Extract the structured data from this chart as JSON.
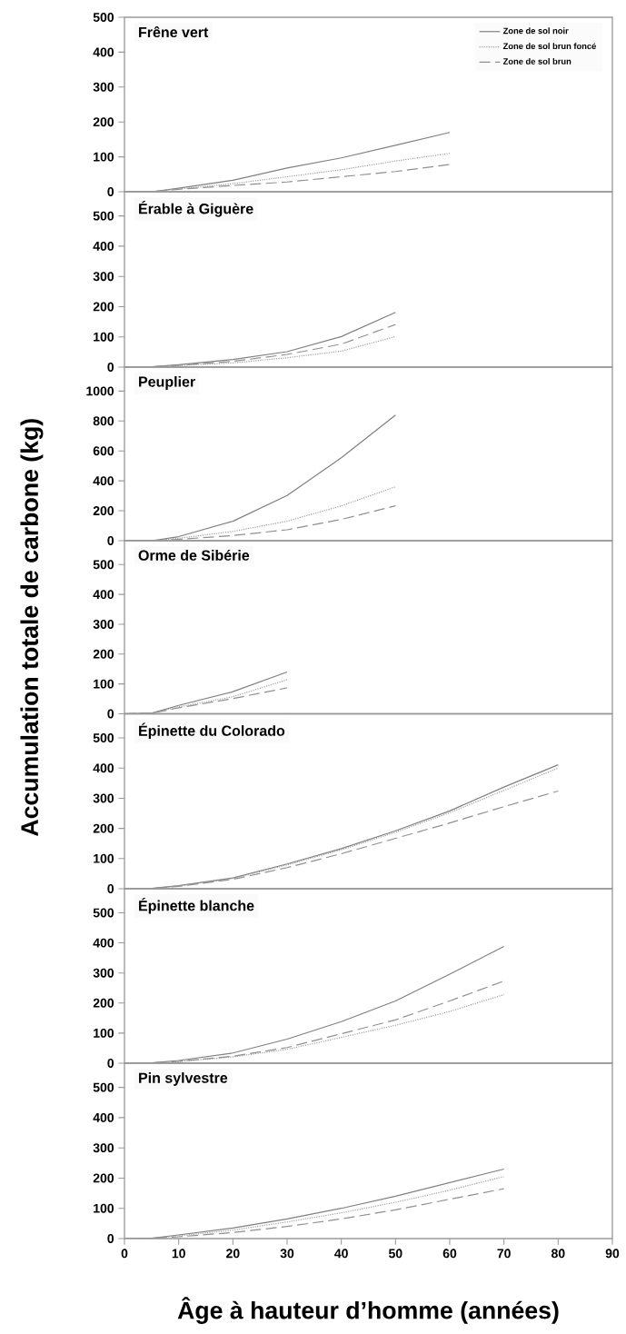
{
  "chart_data": [
    {
      "type": "line",
      "title": "Frêne vert",
      "xlim": [
        0,
        90
      ],
      "ylim": [
        0,
        500
      ],
      "yticks": [
        0,
        100,
        200,
        300,
        400,
        500
      ],
      "tick_labels": "y",
      "legend": "top right",
      "x": [
        0,
        5,
        10,
        20,
        30,
        40,
        50,
        60
      ],
      "series": [
        {
          "name": "Zone de sol noir",
          "color": "#808080",
          "line_style": "solid",
          "values": [
            0,
            0,
            10,
            33,
            68,
            97,
            133,
            170
          ]
        },
        {
          "name": "Zone de sol brun foncé",
          "color": "#a0a0a0",
          "line_style": "dotted",
          "values": [
            0,
            0,
            8,
            23,
            43,
            63,
            88,
            110
          ]
        },
        {
          "name": "Zone de sol brun",
          "color": "#909090",
          "line_style": "dashed",
          "values": [
            0,
            0,
            7,
            18,
            28,
            43,
            58,
            78
          ]
        }
      ]
    },
    {
      "type": "line",
      "title": "Érable à Giguère",
      "xlim": [
        0,
        90
      ],
      "ylim": [
        0,
        580
      ],
      "yticks": [
        0,
        100,
        200,
        300,
        400,
        500
      ],
      "tick_labels": "y",
      "x": [
        0,
        5,
        10,
        20,
        30,
        40,
        50
      ],
      "series": [
        {
          "color": "#808080",
          "line_style": "solid",
          "values": [
            0,
            1,
            8,
            25,
            51,
            101,
            181
          ]
        },
        {
          "color": "#a0a0a0",
          "line_style": "dotted",
          "values": [
            0,
            1,
            5,
            14,
            31,
            53,
            101
          ]
        },
        {
          "color": "#909090",
          "line_style": "dashed",
          "values": [
            0,
            1,
            6,
            19,
            42,
            76,
            141
          ]
        }
      ]
    },
    {
      "type": "line",
      "title": "Peuplier",
      "xlim": [
        0,
        90
      ],
      "ylim": [
        0,
        1160
      ],
      "yticks": [
        0,
        200,
        400,
        600,
        800,
        1000
      ],
      "tick_labels": "y",
      "x": [
        0,
        5,
        10,
        20,
        30,
        40,
        50
      ],
      "series": [
        {
          "color": "#808080",
          "line_style": "solid",
          "values": [
            0,
            0,
            27,
            130,
            302,
            554,
            840
          ]
        },
        {
          "color": "#a0a0a0",
          "line_style": "dotted",
          "values": [
            0,
            0,
            16,
            62,
            130,
            233,
            360
          ]
        },
        {
          "color": "#909090",
          "line_style": "dashed",
          "values": [
            0,
            0,
            9,
            34,
            73,
            142,
            233
          ]
        }
      ]
    },
    {
      "type": "line",
      "title": "Orme de Sibérie",
      "ylabel": "Accumulation totale de carbone (kg)",
      "xlim": [
        0,
        90
      ],
      "ylim": [
        0,
        580
      ],
      "yticks": [
        0,
        100,
        200,
        300,
        400,
        500
      ],
      "tick_labels": "y",
      "x": [
        0,
        5,
        10,
        20,
        30
      ],
      "series": [
        {
          "color": "#808080",
          "line_style": "solid",
          "values": [
            0,
            2,
            28,
            74,
            140
          ]
        },
        {
          "color": "#a0a0a0",
          "line_style": "dotted",
          "values": [
            0,
            2,
            23,
            57,
            114
          ]
        },
        {
          "color": "#909090",
          "line_style": "dashed",
          "values": [
            0,
            2,
            20,
            51,
            87
          ]
        }
      ]
    },
    {
      "type": "line",
      "title": "Épinette du Colorado",
      "xlim": [
        0,
        90
      ],
      "ylim": [
        0,
        580
      ],
      "yticks": [
        0,
        100,
        200,
        300,
        400,
        500
      ],
      "tick_labels": "y",
      "x": [
        0,
        5,
        10,
        20,
        30,
        40,
        50,
        60,
        70,
        80
      ],
      "series": [
        {
          "color": "#808080",
          "line_style": "solid",
          "values": [
            0,
            1,
            10,
            36,
            82,
            133,
            192,
            258,
            337,
            411
          ]
        },
        {
          "color": "#a0a0a0",
          "line_style": "dotted",
          "values": [
            0,
            1,
            9,
            34,
            79,
            129,
            187,
            252,
            326,
            400
          ]
        },
        {
          "color": "#909090",
          "line_style": "dashed",
          "values": [
            0,
            1,
            8,
            31,
            70,
            116,
            167,
            218,
            272,
            324
          ]
        }
      ]
    },
    {
      "type": "line",
      "title": "Épinette blanche",
      "xlim": [
        0,
        90
      ],
      "ylim": [
        0,
        580
      ],
      "yticks": [
        0,
        100,
        200,
        300,
        400,
        500
      ],
      "tick_labels": "y",
      "x": [
        0,
        5,
        10,
        20,
        30,
        40,
        50,
        60,
        70
      ],
      "series": [
        {
          "color": "#808080",
          "line_style": "solid",
          "values": [
            0,
            1,
            9,
            34,
            80,
            138,
            207,
            296,
            388
          ]
        },
        {
          "color": "#a0a0a0",
          "line_style": "dotted",
          "values": [
            0,
            1,
            5,
            21,
            46,
            86,
            126,
            172,
            228
          ]
        },
        {
          "color": "#909090",
          "line_style": "dashed",
          "values": [
            0,
            1,
            6,
            23,
            52,
            98,
            144,
            207,
            273
          ]
        }
      ]
    },
    {
      "type": "line",
      "title": "Pin sylvestre",
      "xlabel": "Âge à hauteur d’homme (années)",
      "xlim": [
        0,
        90
      ],
      "xticks": [
        0,
        10,
        20,
        30,
        40,
        50,
        60,
        70,
        80,
        90
      ],
      "ylim": [
        0,
        580
      ],
      "yticks": [
        0,
        100,
        200,
        300,
        400,
        500
      ],
      "x": [
        0,
        5,
        10,
        20,
        30,
        40,
        50,
        60,
        70
      ],
      "series": [
        {
          "color": "#808080",
          "line_style": "solid",
          "values": [
            0,
            1,
            12,
            35,
            65,
            100,
            140,
            185,
            230
          ]
        },
        {
          "color": "#a0a0a0",
          "line_style": "dotted",
          "values": [
            0,
            1,
            9,
            28,
            55,
            85,
            120,
            160,
            205
          ]
        },
        {
          "color": "#909090",
          "line_style": "dashed",
          "values": [
            0,
            1,
            6,
            20,
            40,
            65,
            95,
            130,
            165
          ]
        }
      ]
    }
  ]
}
